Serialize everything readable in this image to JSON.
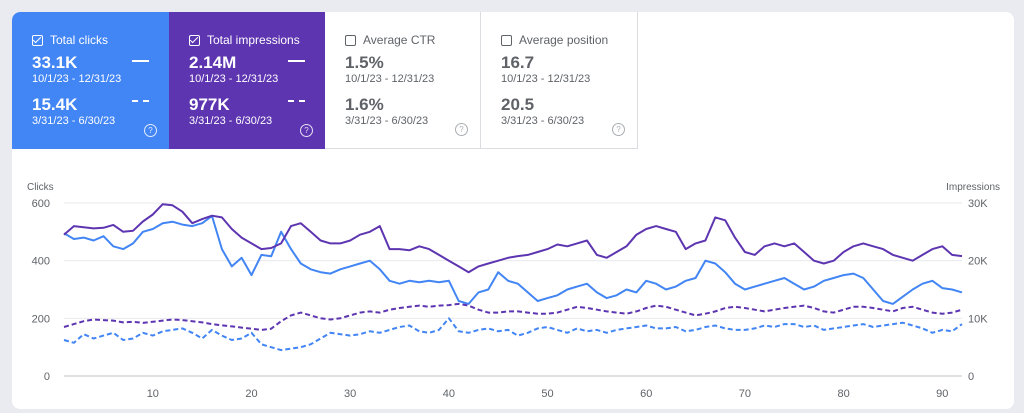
{
  "metrics": {
    "clicks": {
      "label": "Total clicks",
      "v1": "33.1K",
      "d1": "10/1/23 - 12/31/23",
      "v2": "15.4K",
      "d2": "3/31/23 - 6/30/23",
      "checked": true,
      "color": "#4285f4"
    },
    "impressions": {
      "label": "Total impressions",
      "v1": "2.14M",
      "d1": "10/1/23 - 12/31/23",
      "v2": "977K",
      "d2": "3/31/23 - 6/30/23",
      "checked": true,
      "color": "#5e35b1"
    },
    "ctr": {
      "label": "Average CTR",
      "v1": "1.5%",
      "d1": "10/1/23 - 12/31/23",
      "v2": "1.6%",
      "d2": "3/31/23 - 6/30/23",
      "checked": false
    },
    "position": {
      "label": "Average position",
      "v1": "16.7",
      "d1": "10/1/23 - 12/31/23",
      "v2": "20.5",
      "d2": "3/31/23 - 6/30/23",
      "checked": false
    }
  },
  "help_glyph": "?",
  "chart_data": {
    "type": "line",
    "y_left_label": "Clicks",
    "y_right_label": "Impressions",
    "y_left_ticks": [
      "0",
      "200",
      "400",
      "600"
    ],
    "y_right_ticks": [
      "0",
      "10K",
      "20K",
      "30K"
    ],
    "x_ticks": [
      10,
      20,
      30,
      40,
      50,
      60,
      70,
      80,
      90
    ],
    "ylim_left": [
      0,
      600
    ],
    "ylim_right": [
      0,
      30000
    ],
    "xlim": [
      1,
      92
    ],
    "grid": true,
    "series": [
      {
        "metric": "clicks",
        "period": "10/1/23 - 12/31/23",
        "axis": "left",
        "style": "solid",
        "color": "#4285f4",
        "values": [
          495,
          475,
          480,
          470,
          485,
          450,
          440,
          460,
          500,
          510,
          530,
          535,
          525,
          520,
          530,
          555,
          440,
          380,
          410,
          350,
          420,
          415,
          500,
          440,
          390,
          370,
          360,
          355,
          370,
          380,
          390,
          400,
          370,
          330,
          320,
          330,
          325,
          330,
          325,
          330,
          260,
          250,
          290,
          300,
          360,
          330,
          320,
          290,
          260,
          270,
          280,
          300,
          310,
          320,
          290,
          270,
          280,
          300,
          290,
          330,
          320,
          300,
          310,
          330,
          340,
          400,
          390,
          360,
          320,
          300,
          310,
          320,
          330,
          340,
          320,
          300,
          310,
          330,
          340,
          350,
          355,
          340,
          300,
          260,
          250,
          275,
          300,
          320,
          330,
          305,
          300,
          290
        ]
      },
      {
        "metric": "clicks",
        "period": "3/31/23 - 6/30/23",
        "axis": "left",
        "style": "dash",
        "color": "#4285f4",
        "values": [
          125,
          115,
          145,
          130,
          140,
          150,
          125,
          130,
          150,
          140,
          155,
          160,
          165,
          150,
          130,
          160,
          140,
          125,
          130,
          150,
          110,
          100,
          90,
          95,
          100,
          110,
          130,
          150,
          145,
          140,
          145,
          155,
          150,
          160,
          170,
          175,
          155,
          150,
          160,
          200,
          155,
          150,
          160,
          165,
          155,
          160,
          140,
          150,
          165,
          170,
          160,
          150,
          165,
          155,
          160,
          150,
          160,
          165,
          170,
          175,
          165,
          165,
          170,
          155,
          160,
          170,
          175,
          165,
          160,
          160,
          165,
          175,
          170,
          180,
          180,
          170,
          175,
          160,
          165,
          170,
          175,
          180,
          170,
          175,
          180,
          185,
          175,
          165,
          150,
          160,
          155,
          180
        ]
      },
      {
        "metric": "impressions",
        "period": "10/1/23 - 12/31/23",
        "axis": "right",
        "style": "solid",
        "color": "#5e35b1",
        "values": [
          24500,
          26000,
          25800,
          25600,
          25700,
          26200,
          25000,
          25200,
          26800,
          28000,
          29800,
          29600,
          28500,
          26500,
          27200,
          27800,
          27500,
          25500,
          24000,
          23000,
          22000,
          22200,
          23000,
          26000,
          26500,
          25000,
          23500,
          23000,
          23000,
          23500,
          24500,
          25000,
          26000,
          22000,
          22000,
          21800,
          22500,
          22000,
          21000,
          20000,
          19000,
          18000,
          19000,
          19500,
          20000,
          20500,
          20800,
          21000,
          21500,
          22000,
          22800,
          22500,
          23000,
          23500,
          21000,
          20500,
          21500,
          22500,
          24500,
          25500,
          26000,
          25500,
          25000,
          22000,
          23000,
          23500,
          27500,
          27000,
          24000,
          21500,
          21000,
          22500,
          23000,
          22500,
          23000,
          21500,
          20000,
          19500,
          20000,
          21500,
          22500,
          23000,
          22500,
          22000,
          21000,
          20500,
          20000,
          21000,
          22000,
          22500,
          21000,
          20800
        ]
      },
      {
        "metric": "impressions",
        "period": "3/31/23 - 6/30/23",
        "axis": "right",
        "style": "dash",
        "color": "#5e35b1",
        "values": [
          8500,
          9000,
          9500,
          9800,
          9700,
          9600,
          9300,
          9400,
          9200,
          9400,
          9600,
          9800,
          9700,
          9500,
          9300,
          9000,
          8800,
          8600,
          8400,
          8200,
          8000,
          8200,
          9500,
          10500,
          11000,
          10500,
          10000,
          9800,
          10000,
          10500,
          11000,
          11200,
          11000,
          11500,
          11800,
          12000,
          12200,
          12000,
          12200,
          12300,
          12500,
          12200,
          11500,
          11000,
          11000,
          11200,
          11200,
          11000,
          10800,
          10800,
          11000,
          11500,
          12000,
          11800,
          11500,
          11200,
          11000,
          10800,
          11200,
          11800,
          12200,
          12000,
          11500,
          11000,
          10500,
          10800,
          11200,
          11800,
          12000,
          11800,
          11500,
          11200,
          11500,
          11800,
          12000,
          12200,
          11800,
          11200,
          11000,
          11500,
          12000,
          12000,
          11800,
          11500,
          11200,
          11800,
          12000,
          11500,
          11000,
          10800,
          11000,
          11500
        ]
      }
    ]
  }
}
